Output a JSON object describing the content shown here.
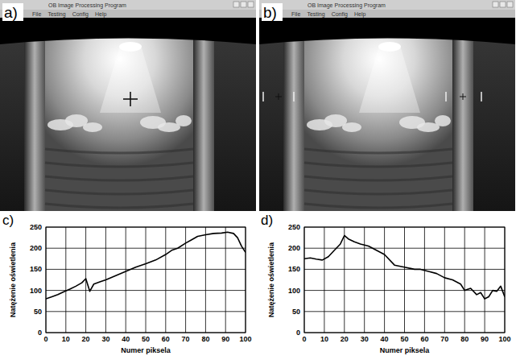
{
  "panels": [
    {
      "panel_label": "a)",
      "window_title": "OB Image Processing Program",
      "menu": [
        "File",
        "Testing",
        "Config",
        "Help"
      ]
    },
    {
      "panel_label": "b)",
      "window_title": "OB Image Processing Program",
      "menu": [
        "File",
        "Testing",
        "Config",
        "Help"
      ]
    }
  ],
  "chart_data": [
    {
      "type": "line",
      "panel_label": "c)",
      "x_label": "Numer piksela",
      "y_label": "Natężenie oświetlenia",
      "x": [
        0,
        3,
        6,
        9,
        12,
        15,
        18,
        20,
        22,
        24,
        27,
        30,
        35,
        40,
        45,
        50,
        55,
        60,
        63,
        66,
        70,
        73,
        76,
        80,
        84,
        88,
        91,
        94,
        96,
        98,
        100
      ],
      "values": [
        80,
        85,
        90,
        97,
        103,
        110,
        118,
        128,
        98,
        115,
        120,
        125,
        135,
        145,
        155,
        163,
        172,
        185,
        195,
        200,
        212,
        220,
        228,
        232,
        235,
        236,
        238,
        235,
        225,
        205,
        190
      ],
      "xlim": [
        0,
        100
      ],
      "ylim": [
        0,
        250
      ],
      "xticks": [
        0,
        10,
        20,
        30,
        40,
        50,
        60,
        70,
        80,
        90,
        100
      ],
      "yticks": [
        0,
        50,
        100,
        150,
        200,
        250
      ],
      "grid": true,
      "color": "#000000"
    },
    {
      "type": "line",
      "panel_label": "d)",
      "x_label": "Numer piksela",
      "y_label": "Natężenie oświetlenia",
      "x": [
        0,
        3,
        6,
        9,
        12,
        15,
        18,
        20,
        22,
        25,
        28,
        32,
        36,
        40,
        45,
        50,
        55,
        58,
        62,
        66,
        70,
        74,
        78,
        80,
        83,
        86,
        88,
        90,
        92,
        94,
        96,
        98,
        100
      ],
      "values": [
        175,
        177,
        174,
        172,
        180,
        195,
        210,
        230,
        222,
        215,
        210,
        205,
        195,
        185,
        160,
        155,
        150,
        150,
        145,
        140,
        130,
        125,
        115,
        100,
        105,
        90,
        95,
        80,
        85,
        100,
        98,
        110,
        85
      ],
      "xlim": [
        0,
        100
      ],
      "ylim": [
        0,
        250
      ],
      "xticks": [
        0,
        10,
        20,
        30,
        40,
        50,
        60,
        70,
        80,
        90,
        100
      ],
      "yticks": [
        0,
        50,
        100,
        150,
        200,
        250
      ],
      "grid": true,
      "color": "#000000"
    }
  ]
}
